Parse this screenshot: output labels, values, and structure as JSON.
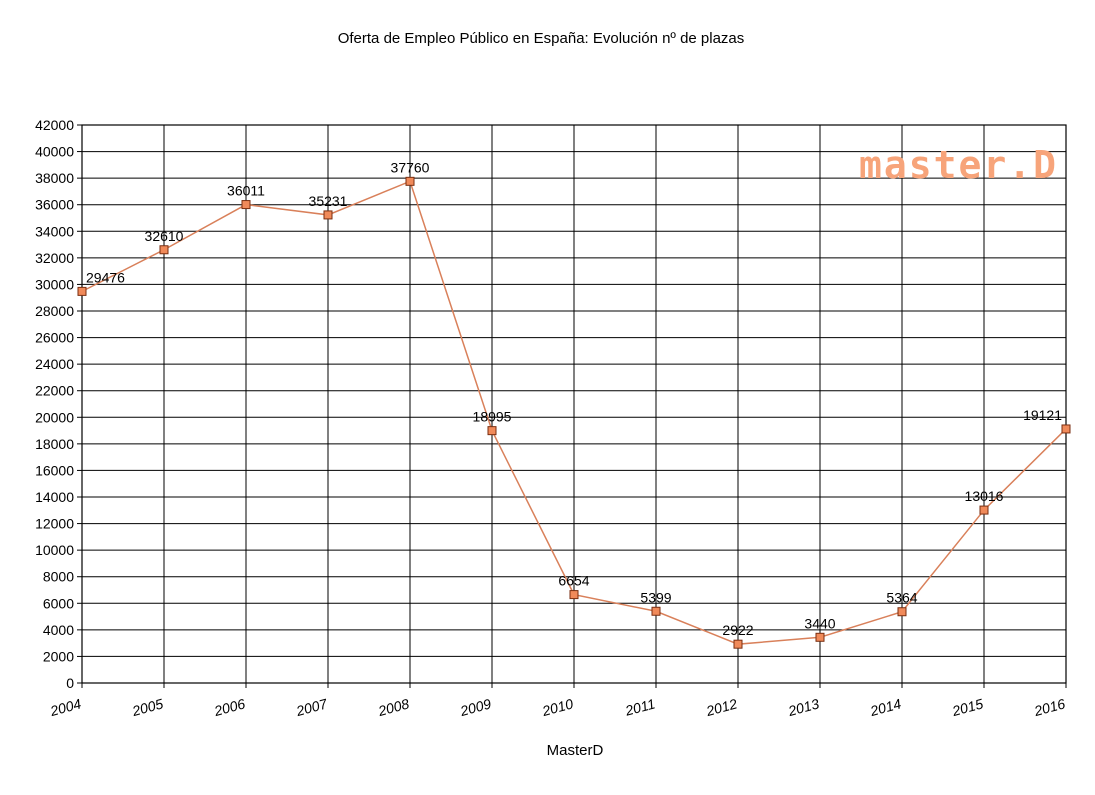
{
  "chart_data": {
    "type": "line",
    "title": "Oferta de Empleo Público en España: Evolución nº de plazas",
    "xlabel": "MasterD",
    "ylabel": "",
    "categories": [
      "2004",
      "2005",
      "2006",
      "2007",
      "2008",
      "2009",
      "2010",
      "2011",
      "2012",
      "2013",
      "2014",
      "2015",
      "2016"
    ],
    "values": [
      29476,
      32610,
      36011,
      35231,
      37760,
      18995,
      6654,
      5399,
      2922,
      3440,
      5364,
      13016,
      19121
    ],
    "data_labels": [
      "29476",
      "32610",
      "36011",
      "35231",
      "37760",
      "18995",
      "6654",
      "5399",
      "2922",
      "3440",
      "5364",
      "13016",
      "19121"
    ],
    "ylim": [
      0,
      42000
    ],
    "ytick_step": 2000,
    "yticks": [
      "0",
      "2000",
      "4000",
      "6000",
      "8000",
      "10000",
      "12000",
      "14000",
      "16000",
      "18000",
      "20000",
      "22000",
      "24000",
      "26000",
      "28000",
      "30000",
      "32000",
      "34000",
      "36000",
      "38000",
      "40000",
      "42000"
    ],
    "grid": true,
    "legend": "none",
    "colors": {
      "line": "#d9805a",
      "marker_fill": "#f08a5a",
      "marker_stroke": "#7a2e10",
      "grid": "#000000",
      "watermark": "#f7a47a"
    }
  },
  "watermark": {
    "text": "master.D"
  }
}
